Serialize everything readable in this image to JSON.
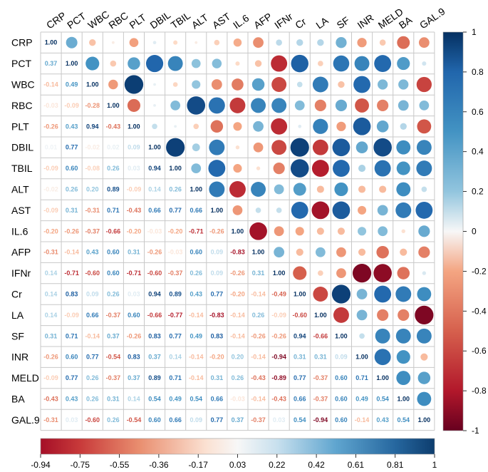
{
  "chart_data": {
    "type": "heatmap",
    "variables": [
      "CRP",
      "PCT",
      "WBC",
      "RBC",
      "PLT",
      "DBIL",
      "TBIL",
      "ALT",
      "AST",
      "IL.6",
      "AFP",
      "IFNr",
      "Cr",
      "LA",
      "SF",
      "INR",
      "MELD",
      "BA",
      "GAL.9"
    ],
    "lower_values": [
      [],
      [
        0.37
      ],
      [
        -0.14,
        0.49
      ],
      [
        -0.03,
        -0.09,
        -0.28
      ],
      [
        -0.26,
        0.43,
        0.94,
        -0.43
      ],
      [
        0.01,
        0.77,
        -0.02,
        0.02,
        0.09
      ],
      [
        -0.09,
        0.6,
        -0.08,
        0.26,
        0.03,
        0.94
      ],
      [
        -0.02,
        0.26,
        0.2,
        0.89,
        -0.09,
        0.14,
        0.26
      ],
      [
        -0.09,
        0.31,
        -0.31,
        0.71,
        -0.43,
        0.66,
        0.77,
        0.66
      ],
      [
        -0.2,
        -0.26,
        -0.37,
        -0.66,
        -0.2,
        -0.03,
        -0.2,
        -0.71,
        -0.26
      ],
      [
        -0.31,
        -0.14,
        0.43,
        0.6,
        0.31,
        -0.26,
        -0.03,
        0.6,
        0.09,
        -0.83
      ],
      [
        0.14,
        -0.71,
        -0.6,
        0.6,
        -0.71,
        -0.6,
        -0.37,
        0.26,
        0.09,
        -0.26,
        0.31
      ],
      [
        0.14,
        0.83,
        0.09,
        0.26,
        0.03,
        0.94,
        0.89,
        0.43,
        0.77,
        -0.2,
        -0.14,
        -0.49
      ],
      [
        0.14,
        -0.09,
        0.66,
        -0.37,
        0.6,
        -0.66,
        -0.77,
        -0.14,
        -0.83,
        -0.14,
        0.26,
        -0.09,
        -0.6
      ],
      [
        0.31,
        0.71,
        -0.14,
        0.37,
        -0.26,
        0.83,
        0.77,
        0.49,
        0.83,
        -0.14,
        -0.26,
        -0.26,
        0.94,
        -0.66
      ],
      [
        -0.26,
        0.6,
        0.77,
        -0.54,
        0.83,
        0.37,
        0.14,
        -0.14,
        -0.2,
        0.2,
        -0.14,
        -0.94,
        0.31,
        0.31,
        0.09
      ],
      [
        -0.09,
        0.77,
        0.26,
        -0.37,
        0.37,
        0.89,
        0.71,
        -0.14,
        0.31,
        0.26,
        -0.43,
        -0.89,
        0.77,
        -0.37,
        0.6,
        0.71
      ],
      [
        -0.43,
        0.43,
        0.26,
        0.31,
        0.14,
        0.54,
        0.49,
        0.54,
        0.66,
        -0.03,
        -0.14,
        -0.43,
        0.66,
        -0.37,
        0.6,
        0.49,
        0.54
      ],
      [
        -0.31,
        0.03,
        -0.6,
        0.26,
        -0.54,
        0.6,
        0.66,
        0.09,
        0.77,
        0.37,
        -0.37,
        0.03,
        0.54,
        -0.94,
        0.6,
        -0.14,
        0.43,
        0.54
      ]
    ],
    "upper_values": [
      [
        1.0,
        0.35,
        -0.12,
        -0.02,
        -0.22,
        0.03,
        -0.05,
        -0.02,
        -0.08,
        -0.18,
        -0.3,
        0.1,
        0.12,
        0.12,
        0.32,
        -0.24,
        -0.1,
        -0.44,
        -0.3
      ],
      [
        1.0,
        0.5,
        -0.1,
        0.42,
        0.8,
        0.6,
        0.22,
        0.25,
        -0.05,
        -0.12,
        -0.72,
        0.82,
        -0.08,
        0.7,
        0.6,
        0.78,
        0.45,
        0.05
      ],
      [
        1.0,
        -0.25,
        0.95,
        0.02,
        -0.06,
        0.2,
        -0.3,
        -0.38,
        0.42,
        -0.6,
        0.08,
        0.66,
        -0.12,
        0.78,
        0.28,
        0.28,
        -0.62
      ],
      [
        1.0,
        -0.45,
        0.02,
        0.26,
        0.9,
        0.72,
        -0.66,
        0.6,
        0.6,
        0.26,
        -0.36,
        0.36,
        -0.54,
        -0.36,
        0.3,
        0.26
      ],
      [
        1.0,
        0.08,
        0.02,
        -0.08,
        -0.42,
        -0.2,
        0.3,
        -0.72,
        0.03,
        0.62,
        -0.24,
        0.84,
        0.38,
        0.12,
        -0.54
      ],
      [
        1.0,
        0.94,
        0.16,
        0.66,
        -0.04,
        -0.26,
        -0.6,
        0.94,
        -0.66,
        0.84,
        0.38,
        0.9,
        0.54,
        0.6
      ],
      [
        1.0,
        0.26,
        0.78,
        -0.2,
        -0.04,
        -0.36,
        0.9,
        -0.78,
        0.78,
        0.14,
        0.72,
        0.5,
        0.66
      ],
      [
        1.0,
        0.66,
        -0.72,
        0.6,
        0.26,
        0.44,
        -0.14,
        0.5,
        -0.14,
        -0.14,
        0.54,
        0.08
      ],
      [
        1.0,
        -0.26,
        0.08,
        0.08,
        0.78,
        -0.84,
        0.84,
        -0.2,
        0.3,
        0.66,
        0.78
      ],
      [
        1.0,
        -0.84,
        -0.26,
        -0.2,
        -0.14,
        -0.14,
        0.2,
        0.26,
        -0.04,
        0.36
      ],
      [
        1.0,
        0.3,
        -0.14,
        0.26,
        -0.26,
        -0.14,
        -0.42,
        -0.14,
        -0.36
      ],
      [
        1.0,
        -0.5,
        -0.08,
        -0.26,
        -0.94,
        -0.9,
        -0.42,
        0.04
      ],
      [
        1.0,
        -0.6,
        0.94,
        0.3,
        0.78,
        0.66,
        0.54
      ],
      [
        1.0,
        -0.66,
        0.3,
        -0.36,
        -0.36,
        -0.94
      ],
      [
        1.0,
        0.08,
        0.6,
        0.6,
        0.6
      ],
      [
        1.0,
        0.72,
        0.5,
        -0.14
      ],
      [
        1.0,
        0.54,
        0.42
      ],
      [
        1.0,
        0.54
      ],
      [
        1.0
      ]
    ],
    "colorbar_right": {
      "range": [
        -1,
        1
      ],
      "tick_labels": [
        "1",
        "0.8",
        "0.6",
        "0.4",
        "0.2",
        "0",
        "-0.2",
        "-0.4",
        "-0.6",
        "-0.8",
        "-1"
      ]
    },
    "colorbar_bottom": {
      "range": [
        -0.94,
        1
      ],
      "tick_labels": [
        "-0.94",
        "-0.75",
        "-0.55",
        "-0.36",
        "-0.17",
        "0.03",
        "0.22",
        "0.42",
        "0.61",
        "0.81",
        "1"
      ]
    },
    "colors": {
      "negative_end": "#67001f",
      "neg_mid": "#d6604d",
      "neg_light": "#fddbc7",
      "zero": "#f7f7f7",
      "pos_light": "#d1e5f0",
      "pos_mid": "#4393c3",
      "positive_end": "#053061",
      "grid": "#c8c8c8"
    }
  }
}
